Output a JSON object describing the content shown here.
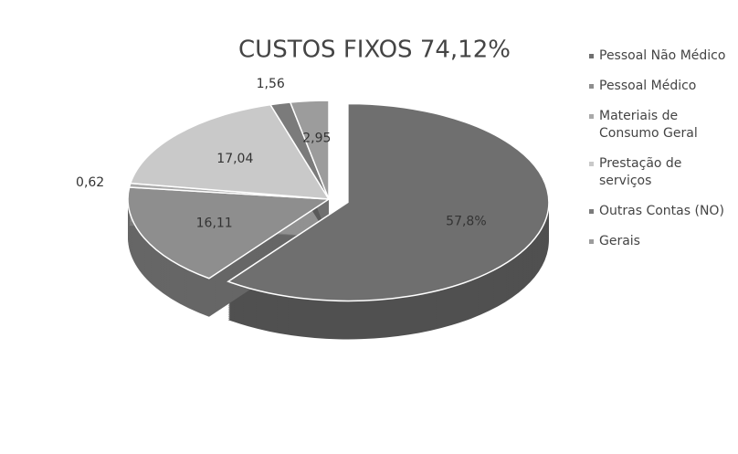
{
  "chart_data": {
    "type": "pie",
    "title": "CUSTOS FIXOS 74,12%",
    "categories": [
      "Pessoal Não Médico",
      "Pessoal Médico",
      "Materiais de Consumo Geral",
      "Prestação de serviços",
      "Outras Contas (NO)",
      "Gerais"
    ],
    "values": [
      57.8,
      16.11,
      0.62,
      17.04,
      1.56,
      2.95
    ],
    "value_labels": [
      "57,8%",
      "16,11",
      "0,62",
      "17,04",
      "1,56",
      "2,95"
    ],
    "colors": [
      "#6f6f6f",
      "#8e8e8e",
      "#a9a9a9",
      "#c9c9c9",
      "#7b7b7b",
      "#9c9c9c"
    ]
  }
}
